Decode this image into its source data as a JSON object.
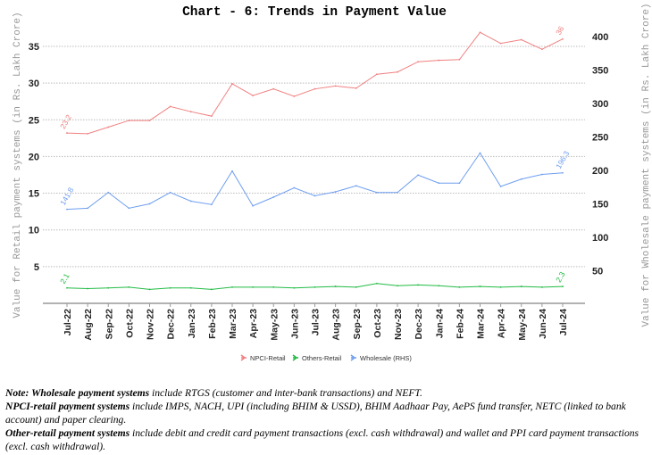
{
  "chart_data": {
    "type": "line",
    "title": "Chart - 6: Trends in Payment Value",
    "ylabel": "Value for Retail payment systems (in Rs. Lakh Crore)",
    "y2label": "Value for Wholesale payment systems (in Rs. Lakh Crore)",
    "ylim": [
      0,
      37
    ],
    "y2lim": [
      0,
      450
    ],
    "yticks": [
      5,
      10,
      15,
      20,
      25,
      30,
      35
    ],
    "y2ticks": [
      50,
      100,
      150,
      200,
      250,
      300,
      350,
      400
    ],
    "grid": true,
    "legend_position": "bottom",
    "categories": [
      "Jul-22",
      "Aug-22",
      "Sep-22",
      "Oct-22",
      "Nov-22",
      "Dec-22",
      "Jan-23",
      "Feb-23",
      "Mar-23",
      "Apr-23",
      "May-23",
      "Jun-23",
      "Jul-23",
      "Aug-23",
      "Sep-23",
      "Oct-23",
      "Nov-23",
      "Dec-23",
      "Jan-24",
      "Feb-24",
      "Mar-24",
      "Apr-24",
      "May-24",
      "Jun-24",
      "Jul-24"
    ],
    "series": [
      {
        "name": "NPCI-Retail",
        "axis": "left",
        "color": "#f08080",
        "values": [
          23.2,
          23.1,
          24.0,
          24.9,
          24.9,
          26.8,
          26.1,
          25.5,
          29.9,
          28.3,
          29.2,
          28.2,
          29.2,
          29.6,
          29.3,
          31.2,
          31.5,
          32.9,
          33.1,
          33.2,
          36.9,
          35.4,
          35.9,
          34.6,
          36.0
        ],
        "labels": {
          "first": "23.2",
          "last": "36"
        }
      },
      {
        "name": "Others-Retail",
        "axis": "left",
        "color": "#22bb44",
        "values": [
          2.1,
          2.0,
          2.1,
          2.2,
          1.9,
          2.1,
          2.1,
          1.9,
          2.2,
          2.2,
          2.2,
          2.1,
          2.2,
          2.3,
          2.2,
          2.7,
          2.4,
          2.5,
          2.4,
          2.2,
          2.3,
          2.2,
          2.3,
          2.2,
          2.3
        ],
        "labels": {
          "first": "2.1",
          "last": "2.3"
        }
      },
      {
        "name": "Wholesale (RHS)",
        "axis": "right",
        "color": "#6f9ef0",
        "values": [
          141.8,
          143.5,
          167,
          143.5,
          150,
          167,
          154,
          149,
          199,
          147,
          160,
          174,
          162,
          168,
          177,
          167,
          167,
          193,
          181,
          181,
          226,
          176,
          187,
          194,
          196.3
        ],
        "labels": {
          "first": "141.8",
          "last": "196.3"
        }
      }
    ]
  },
  "notes": [
    {
      "bold": "Note: Wholesale payment systems",
      "text": " include RTGS (customer and inter-bank transactions) and NEFT."
    },
    {
      "bold": "NPCI-retail payment systems",
      "text": " include IMPS, NACH, UPI (including BHIM & USSD), BHIM Aadhaar Pay, AePS fund transfer, NETC (linked to bank account) and paper clearing."
    },
    {
      "bold": "Other-retail payment systems",
      "text": " include debit and credit card payment transactions (excl. cash withdrawal) and wallet and PPI card payment transactions (excl. cash withdrawal)."
    }
  ]
}
